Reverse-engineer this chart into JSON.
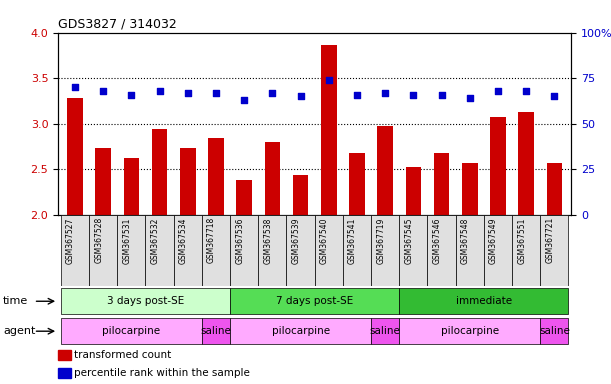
{
  "title": "GDS3827 / 314032",
  "samples": [
    "GSM367527",
    "GSM367528",
    "GSM367531",
    "GSM367532",
    "GSM367534",
    "GSM367718",
    "GSM367536",
    "GSM367538",
    "GSM367539",
    "GSM367540",
    "GSM367541",
    "GSM367719",
    "GSM367545",
    "GSM367546",
    "GSM367548",
    "GSM367549",
    "GSM367551",
    "GSM367721"
  ],
  "bar_values": [
    3.28,
    2.73,
    2.62,
    2.94,
    2.74,
    2.85,
    2.38,
    2.8,
    2.44,
    3.86,
    2.68,
    2.98,
    2.53,
    2.68,
    2.57,
    3.08,
    3.13,
    2.57
  ],
  "dot_values": [
    70,
    68,
    66,
    68,
    67,
    67,
    63,
    67,
    65,
    74,
    66,
    67,
    66,
    66,
    64,
    68,
    68,
    65
  ],
  "bar_color": "#cc0000",
  "dot_color": "#0000cc",
  "ylim_left": [
    2.0,
    4.0
  ],
  "ylim_right": [
    0,
    100
  ],
  "yticks_left": [
    2.0,
    2.5,
    3.0,
    3.5,
    4.0
  ],
  "yticks_right": [
    0,
    25,
    50,
    75,
    100
  ],
  "ytick_labels_right": [
    "0",
    "25",
    "50",
    "75",
    "100%"
  ],
  "hlines": [
    2.5,
    3.0,
    3.5
  ],
  "time_spans": [
    {
      "label": "3 days post-SE",
      "start": 0,
      "end": 5,
      "color": "#ccffcc"
    },
    {
      "label": "7 days post-SE",
      "start": 6,
      "end": 11,
      "color": "#55dd55"
    },
    {
      "label": "immediate",
      "start": 12,
      "end": 17,
      "color": "#33bb33"
    }
  ],
  "agent_spans": [
    {
      "label": "pilocarpine",
      "start": 0,
      "end": 4,
      "color": "#ffaaff"
    },
    {
      "label": "saline",
      "start": 5,
      "end": 5,
      "color": "#ee55ee"
    },
    {
      "label": "pilocarpine",
      "start": 6,
      "end": 10,
      "color": "#ffaaff"
    },
    {
      "label": "saline",
      "start": 11,
      "end": 11,
      "color": "#ee55ee"
    },
    {
      "label": "pilocarpine",
      "start": 12,
      "end": 16,
      "color": "#ffaaff"
    },
    {
      "label": "saline",
      "start": 17,
      "end": 17,
      "color": "#ee55ee"
    }
  ],
  "background_color": "#ffffff",
  "label_bg_color": "#e0e0e0",
  "legend_items": [
    {
      "color": "#cc0000",
      "label": "transformed count"
    },
    {
      "color": "#0000cc",
      "label": "percentile rank within the sample"
    }
  ]
}
